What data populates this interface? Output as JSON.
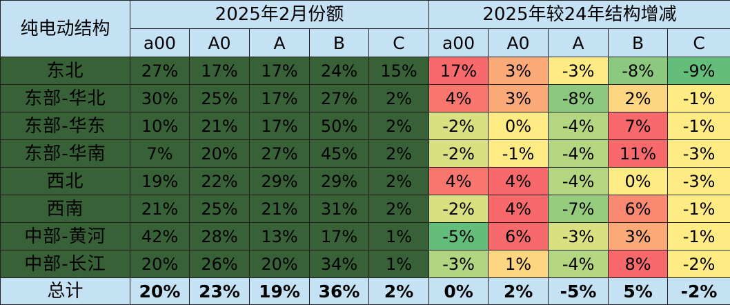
{
  "header": {
    "corner_label": "纯电动结构",
    "group1_title": "2025年2月份额",
    "group2_title": "2025年较24年结构增减",
    "share_columns": [
      "a00",
      "A0",
      "A",
      "B",
      "C"
    ],
    "change_columns": [
      "a00",
      "A0",
      "A",
      "B",
      "C"
    ]
  },
  "rows": [
    {
      "region": "东北",
      "share": [
        "27%",
        "17%",
        "17%",
        "24%",
        "15%"
      ],
      "change": [
        "17%",
        "3%",
        "-3%",
        "-8%",
        "-9%"
      ],
      "change_colors": [
        "#f8696b",
        "#fbaa77",
        "#ffeb84",
        "#8cc97e",
        "#63be7b"
      ]
    },
    {
      "region": "东部-华北",
      "share": [
        "30%",
        "25%",
        "17%",
        "27%",
        "2%"
      ],
      "change": [
        "4%",
        "3%",
        "-8%",
        "2%",
        "-1%"
      ],
      "change_colors": [
        "#f9766e",
        "#fbaa77",
        "#8cc97e",
        "#fed580",
        "#ffeb84"
      ]
    },
    {
      "region": "东部-华东",
      "share": [
        "10%",
        "21%",
        "17%",
        "50%",
        "2%"
      ],
      "change": [
        "-2%",
        "0%",
        "-4%",
        "7%",
        "-1%"
      ],
      "change_colors": [
        "#d8e082",
        "#ffeb84",
        "#b4d680",
        "#f8696b",
        "#ffeb84"
      ]
    },
    {
      "region": "东部-华南",
      "share": [
        "7%",
        "20%",
        "27%",
        "45%",
        "2%"
      ],
      "change": [
        "-2%",
        "-1%",
        "-4%",
        "11%",
        "-3%"
      ],
      "change_colors": [
        "#d8e082",
        "#ffeb84",
        "#b4d680",
        "#f8696b",
        "#ffeb84"
      ]
    },
    {
      "region": "西北",
      "share": [
        "19%",
        "22%",
        "29%",
        "29%",
        "2%"
      ],
      "change": [
        "4%",
        "4%",
        "-4%",
        "0%",
        "-3%"
      ],
      "change_colors": [
        "#f9766e",
        "#f8696b",
        "#b4d680",
        "#ffeb84",
        "#ffeb84"
      ]
    },
    {
      "region": "西南",
      "share": [
        "21%",
        "25%",
        "21%",
        "31%",
        "2%"
      ],
      "change": [
        "-2%",
        "4%",
        "-7%",
        "6%",
        "-1%"
      ],
      "change_colors": [
        "#d8e082",
        "#f8696b",
        "#96cc7e",
        "#f98971",
        "#ffeb84"
      ]
    },
    {
      "region": "中部-黄河",
      "share": [
        "42%",
        "28%",
        "13%",
        "17%",
        "1%"
      ],
      "change": [
        "-5%",
        "6%",
        "-3%",
        "3%",
        "-1%"
      ],
      "change_colors": [
        "#63be7b",
        "#f8696b",
        "#d8e082",
        "#fbaa77",
        "#ffeb84"
      ]
    },
    {
      "region": "中部-长江",
      "share": [
        "20%",
        "26%",
        "20%",
        "34%",
        "1%"
      ],
      "change": [
        "-3%",
        "1%",
        "-4%",
        "8%",
        "-2%"
      ],
      "change_colors": [
        "#b1d580",
        "#fed580",
        "#b4d680",
        "#f8696b",
        "#ffeb84"
      ]
    }
  ],
  "total": {
    "label": "总计",
    "share": [
      "20%",
      "23%",
      "19%",
      "36%",
      "2%"
    ],
    "change": [
      "0%",
      "2%",
      "-5%",
      "5%",
      "-2%"
    ]
  },
  "colors": {
    "header_bg": "#c5e2f4",
    "share_bg": "#386138",
    "border": "#1f1f1f"
  }
}
